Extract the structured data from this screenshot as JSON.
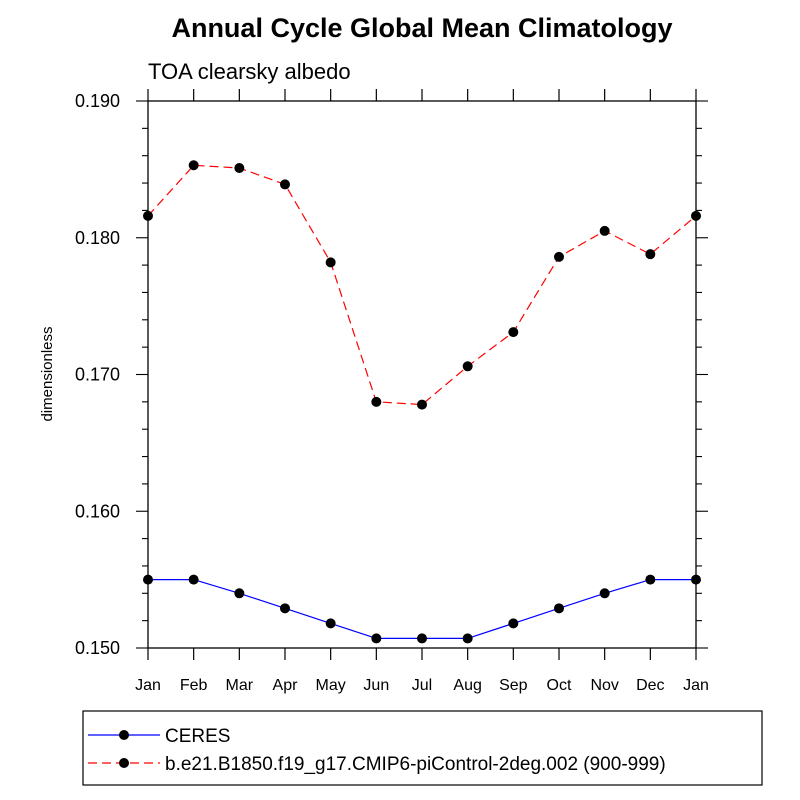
{
  "chart_data": {
    "type": "line",
    "title": "Annual Cycle Global Mean Climatology",
    "subtitle": "TOA clearsky albedo",
    "ylabel": "dimensionless",
    "xlabel": "",
    "ylim": [
      0.15,
      0.19
    ],
    "yticks": [
      "0.150",
      "0.160",
      "0.170",
      "0.180",
      "0.190"
    ],
    "categories": [
      "Jan",
      "Feb",
      "Mar",
      "Apr",
      "May",
      "Jun",
      "Jul",
      "Aug",
      "Sep",
      "Oct",
      "Nov",
      "Dec",
      "Jan"
    ],
    "series": [
      {
        "name": "CERES",
        "color": "#0000ff",
        "dash": "solid",
        "values": [
          0.155,
          0.155,
          0.154,
          0.1529,
          0.1518,
          0.1507,
          0.1507,
          0.1507,
          0.1518,
          0.1529,
          0.154,
          0.155,
          0.155
        ]
      },
      {
        "name": "b.e21.B1850.f19_g17.CMIP6-piControl-2deg.002 (900-999)",
        "color": "#ff0000",
        "dash": "dashed",
        "values": [
          0.1816,
          0.1853,
          0.1851,
          0.1839,
          0.1782,
          0.168,
          0.1678,
          0.1706,
          0.1731,
          0.1786,
          0.1805,
          0.1788,
          0.1816
        ]
      }
    ],
    "grid": false,
    "legend_position": "bottom"
  }
}
